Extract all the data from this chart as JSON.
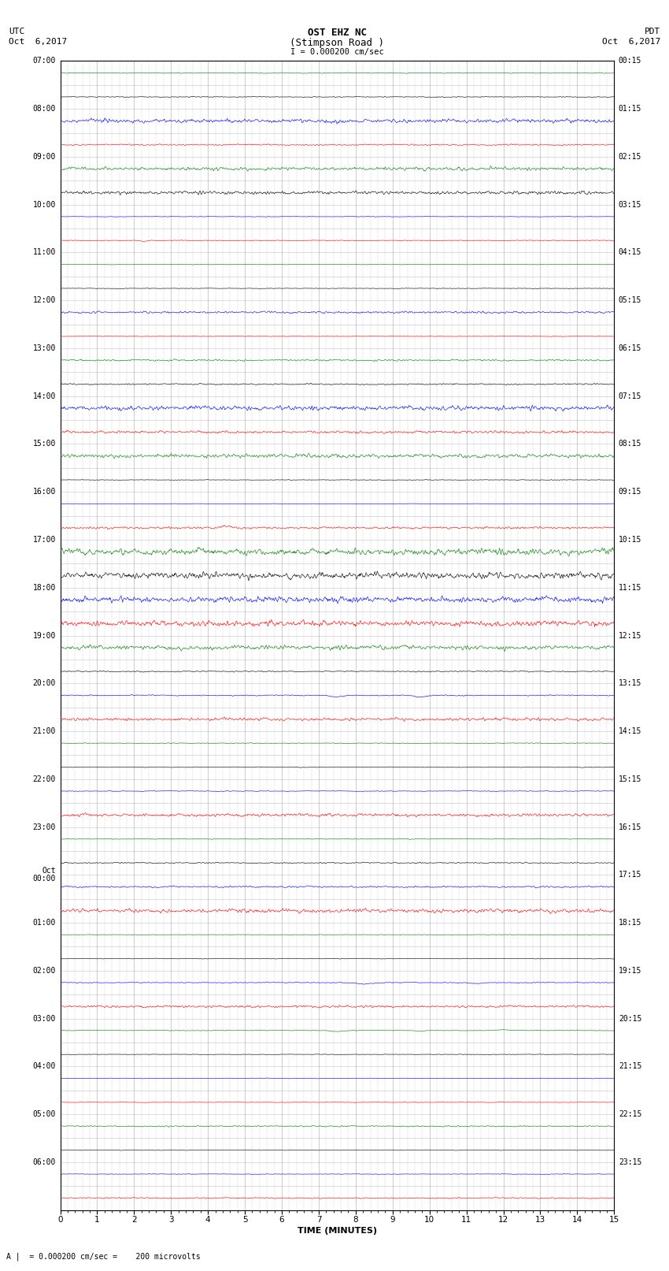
{
  "title_line1": "OST EHZ NC",
  "title_line2": "(Stimpson Road )",
  "title_line3": "I = 0.000200 cm/sec",
  "left_header1": "UTC",
  "left_header2": "Oct  6,2017",
  "right_header1": "PDT",
  "right_header2": "Oct  6,2017",
  "xlabel": "TIME (MINUTES)",
  "bottom_note": "A |  = 0.000200 cm/sec =    200 microvolts",
  "bg_color": "#ffffff",
  "grid_color": "#999999",
  "left_times": [
    "07:00",
    "08:00",
    "09:00",
    "10:00",
    "11:00",
    "12:00",
    "13:00",
    "14:00",
    "15:00",
    "16:00",
    "17:00",
    "18:00",
    "19:00",
    "20:00",
    "21:00",
    "22:00",
    "23:00",
    "Oct\n00:00",
    "01:00",
    "02:00",
    "03:00",
    "04:00",
    "05:00",
    "06:00"
  ],
  "right_times": [
    "00:15",
    "01:15",
    "02:15",
    "03:15",
    "04:15",
    "05:15",
    "06:15",
    "07:15",
    "08:15",
    "09:15",
    "10:15",
    "11:15",
    "12:15",
    "13:15",
    "14:15",
    "15:15",
    "16:15",
    "17:15",
    "18:15",
    "19:15",
    "20:15",
    "21:15",
    "22:15",
    "23:15"
  ],
  "n_rows": 48,
  "xmin": 0,
  "xmax": 15,
  "xticks": [
    0,
    1,
    2,
    3,
    4,
    5,
    6,
    7,
    8,
    9,
    10,
    11,
    12,
    13,
    14,
    15
  ],
  "colors": [
    "green",
    "black",
    "blue",
    "red"
  ],
  "figwidth": 8.5,
  "figheight": 16.13,
  "dpi": 100
}
